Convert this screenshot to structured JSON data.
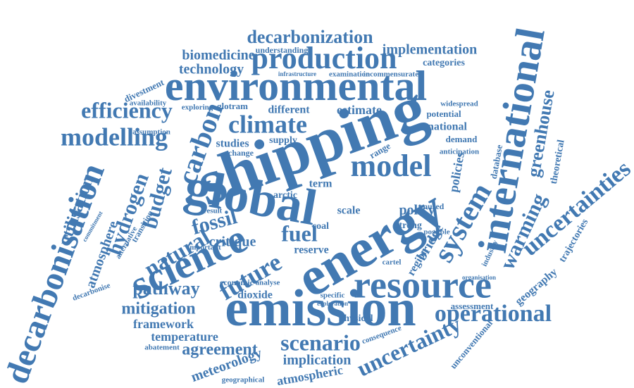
{
  "words": [
    "shipping",
    "emission",
    "environmental",
    "energy",
    "global",
    "international",
    "resource",
    "science",
    "decarbonisation",
    "model",
    "production",
    "decarbonization",
    "climate",
    "efficiency",
    "modelling",
    "carbon",
    "budget",
    "hydrogen",
    "utilisation",
    "atmosphere",
    "uncertainties",
    "greenhouse",
    "warming",
    "system",
    "operational",
    "uncertainty",
    "scenario",
    "implication",
    "fossil",
    "fuel",
    "future",
    "natural",
    "pathway",
    "mitigation",
    "framework",
    "temperature",
    "agreement",
    "meteorology",
    "atmospheric",
    "geographical",
    "critique",
    "reserve",
    "dioxide",
    "policy",
    "policies",
    "bridge",
    "region",
    "geography",
    "trajectories",
    "theoretical",
    "database",
    "national",
    "potential",
    "demand",
    "assessment",
    "biomedicine",
    "technology",
    "understanding",
    "implementation",
    "categories",
    "incommensurate",
    "divestment",
    "availability",
    "exploring",
    "glotram",
    "different",
    "estimate",
    "assumption",
    "studies",
    "supply",
    "change",
    "arctic",
    "scale",
    "term",
    "strong",
    "unused",
    "possible",
    "range",
    "widespread",
    "economic",
    "physical",
    "consequence",
    "unconventional",
    "important",
    "alternative",
    "transition",
    "decarbonise",
    "abatement",
    "result",
    "coal",
    "cartel",
    "industry",
    "organisation",
    "analyse",
    "specific",
    "exploration",
    "examination",
    "infrastructure",
    "commitment",
    "anticipation"
  ]
}
